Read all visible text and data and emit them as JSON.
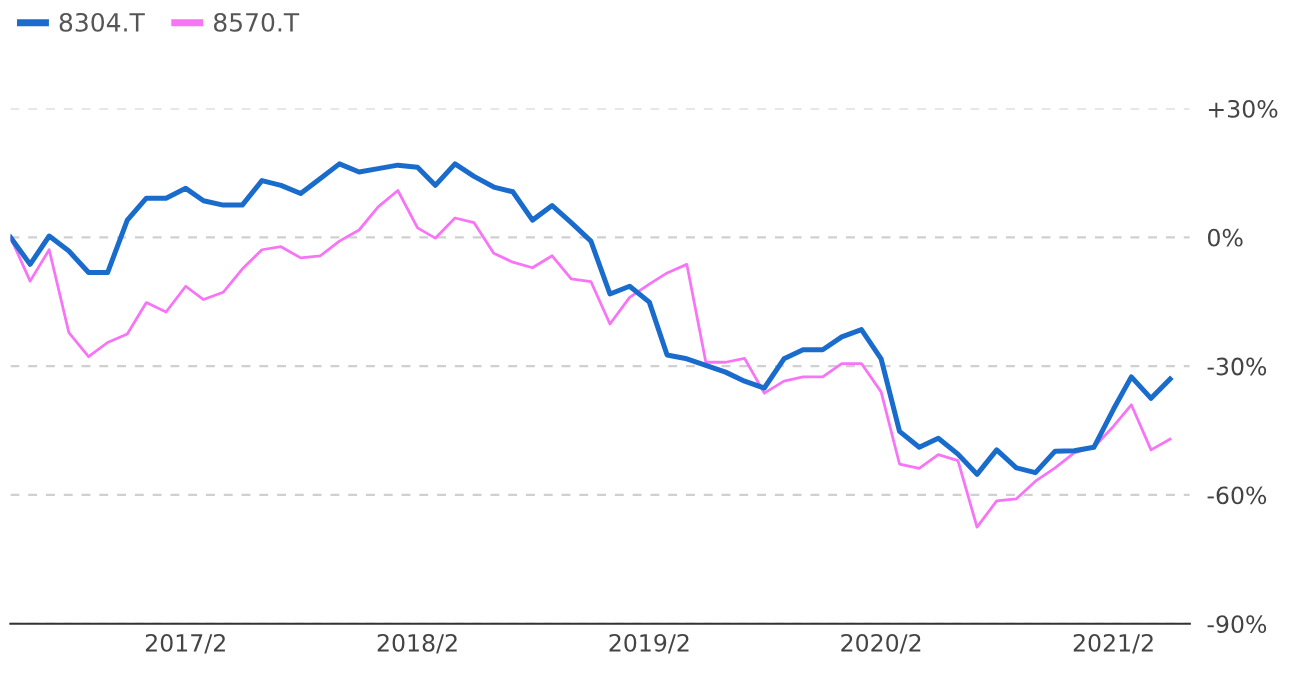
{
  "chart_data": {
    "type": "line",
    "x": [
      "2016-05",
      "2016-06",
      "2016-07",
      "2016-08",
      "2016-09",
      "2016-10",
      "2016-11",
      "2016-12",
      "2017-01",
      "2017-02",
      "2017-03",
      "2017-04",
      "2017-05",
      "2017-06",
      "2017-07",
      "2017-08",
      "2017-09",
      "2017-10",
      "2017-11",
      "2017-12",
      "2018-01",
      "2018-02",
      "2018-03",
      "2018-04",
      "2018-05",
      "2018-06",
      "2018-07",
      "2018-08",
      "2018-09",
      "2018-10",
      "2018-11",
      "2018-12",
      "2019-01",
      "2019-02",
      "2019-03",
      "2019-04",
      "2019-05",
      "2019-06",
      "2019-07",
      "2019-08",
      "2019-09",
      "2019-10",
      "2019-11",
      "2019-12",
      "2020-01",
      "2020-02",
      "2020-03",
      "2020-04",
      "2020-05",
      "2020-06",
      "2020-07",
      "2020-08",
      "2020-09",
      "2020-10",
      "2020-11",
      "2020-12",
      "2021-01",
      "2021-02",
      "2021-03",
      "2021-04",
      "2021-05"
    ],
    "series": [
      {
        "name": "8304.T",
        "color": "#1a6ccc",
        "values": [
          0,
          -6.3,
          0.3,
          -3.2,
          -8.2,
          -8.2,
          4.0,
          9.1,
          9.1,
          11.4,
          8.5,
          7.5,
          7.5,
          13.2,
          12.1,
          10.2,
          13.7,
          17.1,
          15.2,
          16.0,
          16.8,
          16.3,
          12.1,
          17.1,
          14.2,
          11.7,
          10.6,
          4.0,
          7.4,
          3.4,
          -0.9,
          -13.2,
          -11.4,
          -15.1,
          -27.4,
          -28.3,
          -29.8,
          -31.4,
          -33.5,
          -35.1,
          -28.3,
          -26.2,
          -26.2,
          -23.2,
          -21.5,
          -28.3,
          -45.2,
          -48.9,
          -46.8,
          -50.5,
          -55.2,
          -49.5,
          -53.7,
          -54.8,
          -49.8,
          -49.7,
          -48.9,
          -40.0,
          -32.5,
          -37.5,
          -33.0
        ]
      },
      {
        "name": "8570.T",
        "color": "#f774f7",
        "values": [
          0,
          -10.2,
          -2.9,
          -22.2,
          -27.8,
          -24.5,
          -22.5,
          -15.2,
          -17.4,
          -11.4,
          -14.5,
          -12.8,
          -7.4,
          -2.9,
          -2.2,
          -4.8,
          -4.3,
          -0.9,
          1.7,
          7.1,
          10.9,
          2.2,
          -0.2,
          4.5,
          3.4,
          -3.7,
          -5.8,
          -7.1,
          -4.3,
          -9.7,
          -10.3,
          -20.2,
          -14.0,
          -10.9,
          -8.3,
          -6.3,
          -29.1,
          -29.1,
          -28.2,
          -36.3,
          -33.5,
          -32.5,
          -32.5,
          -29.4,
          -29.4,
          -36.0,
          -52.8,
          -53.8,
          -50.6,
          -52.0,
          -67.5,
          -61.4,
          -60.9,
          -56.8,
          -53.7,
          -50.2,
          -48.9,
          -44.0,
          -39.0,
          -49.5,
          -47.0
        ]
      }
    ],
    "xlim": [
      "2016-05",
      "2021-06"
    ],
    "xticks": [
      {
        "value": "2017-02",
        "label": "2017/2"
      },
      {
        "value": "2018-02",
        "label": "2018/2"
      },
      {
        "value": "2019-02",
        "label": "2019/2"
      },
      {
        "value": "2020-02",
        "label": "2020/2"
      },
      {
        "value": "2021-02",
        "label": "2021/2"
      }
    ],
    "ylim": [
      -90,
      30
    ],
    "yticks": [
      {
        "value": 30,
        "label": "+30%"
      },
      {
        "value": 0,
        "label": "0%"
      },
      {
        "value": -30,
        "label": "-30%"
      },
      {
        "value": -60,
        "label": "-60%"
      },
      {
        "value": -90,
        "label": "-90%"
      }
    ],
    "grid": "y",
    "legend": "top left",
    "marker": "none",
    "line_style": "solid"
  }
}
